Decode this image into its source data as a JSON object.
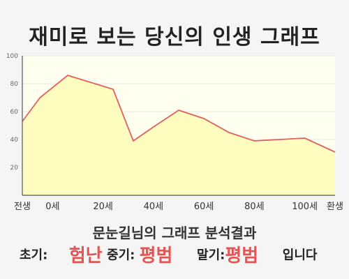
{
  "header": {
    "title": "재미로 보는 당신의 인생 그래프"
  },
  "analysis": {
    "heading": "문눈길님의 그래프 분석결과",
    "early_label": "초기:",
    "early_value": "험난",
    "mid_label": "중기:",
    "mid_value": "평범",
    "late_label": "말기:",
    "late_value": "평범",
    "suffix": "입니다"
  },
  "colors": {
    "fill": "#fffcc0",
    "line": "#e06060",
    "highlight": "#e25555",
    "plot_bg": "#fffff0",
    "grid": "#e6e6e6"
  },
  "chart_data": {
    "type": "area",
    "title": "",
    "xlabel": "",
    "ylabel": "",
    "ylim": [
      0,
      100
    ],
    "xlim": [
      -12,
      112
    ],
    "yticks": [
      20,
      40,
      60,
      80,
      100
    ],
    "x_ticks": [
      {
        "x": -12,
        "label": "전생"
      },
      {
        "x": 0,
        "label": "0세"
      },
      {
        "x": 20,
        "label": "20세"
      },
      {
        "x": 40,
        "label": "40세"
      },
      {
        "x": 60,
        "label": "60세"
      },
      {
        "x": 80,
        "label": "80세"
      },
      {
        "x": 100,
        "label": "100세"
      },
      {
        "x": 112,
        "label": "환생"
      }
    ],
    "grid": true,
    "series": [
      {
        "x": [
          -12,
          -5,
          6,
          24,
          32,
          40,
          50,
          60,
          70,
          80,
          90,
          100,
          112
        ],
        "y": [
          53,
          70,
          86,
          76,
          39,
          49,
          61,
          55,
          45,
          39,
          40,
          41,
          31
        ]
      }
    ]
  }
}
